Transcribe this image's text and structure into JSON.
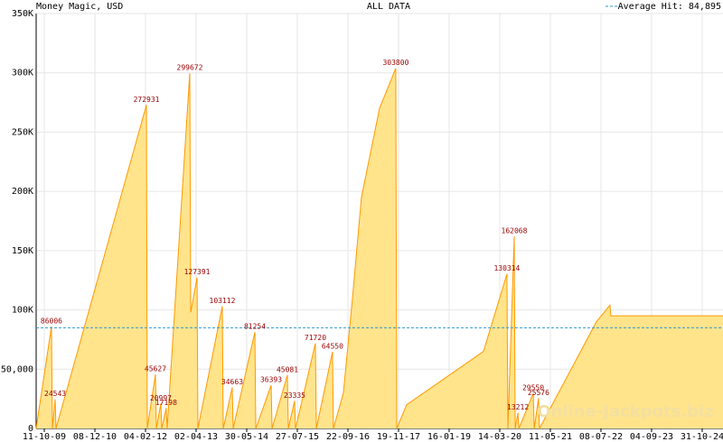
{
  "chart_data": {
    "type": "area",
    "title": "Money Magic, USD",
    "subtitle": "ALL DATA",
    "average": 84895,
    "average_label": "Average Hit: 84,895",
    "watermark": "Online-Jackpots.biz",
    "color": "#ff9900",
    "fill": "#ffe48c",
    "average_color": "#3399cc",
    "label_color": "#990000",
    "grid": true,
    "x": [
      "04-08-09",
      "10-12-09",
      "18-12-09",
      "10-01-10",
      "17-01-10",
      "12-02-12",
      "19-02-12",
      "27-04-12",
      "05-05-12",
      "11-06-12",
      "19-06-12",
      "26-07-12",
      "03-08-12",
      "08-02-13",
      "16-02-13",
      "10-04-13",
      "17-04-13",
      "07-11-13",
      "15-11-13",
      "29-01-14",
      "06-02-14",
      "06-08-14",
      "14-08-14",
      "20-12-14",
      "28-12-14",
      "05-05-15",
      "13-05-15",
      "04-07-15",
      "12-07-15",
      "25-12-15",
      "02-01-16",
      "16-05-16",
      "24-05-16",
      "15-08-16",
      "30-10-16",
      "13-01-17",
      "13-06-17",
      "27-10-17",
      "04-11-17",
      "26-01-18",
      "30-10-19",
      "13-05-20",
      "21-05-20",
      "13-07-20",
      "21-07-20",
      "13-08-20",
      "21-08-20",
      "19-12-20",
      "27-12-20",
      "01-02-21",
      "09-02-21",
      "31-05-22",
      "21-09-22",
      "29-09-22",
      "23-04-25"
    ],
    "values": [
      0,
      86006,
      0,
      24543,
      0,
      272931,
      0,
      45627,
      0,
      20997,
      0,
      17198,
      0,
      299672,
      98000,
      127391,
      0,
      103112,
      0,
      34663,
      0,
      81254,
      0,
      36393,
      0,
      45081,
      0,
      23335,
      0,
      71720,
      0,
      64550,
      0,
      30000,
      110000,
      195000,
      270000,
      303800,
      0,
      20000,
      65000,
      130314,
      0,
      162068,
      0,
      13212,
      0,
      29550,
      0,
      25576,
      0,
      90000,
      104000,
      95000,
      95000
    ],
    "value_labels": [
      null,
      "86006",
      null,
      "24543",
      null,
      "272931",
      null,
      "45627",
      null,
      "20997",
      null,
      "17198",
      null,
      "299672",
      null,
      "127391",
      null,
      "103112",
      null,
      "34663",
      null,
      "81254",
      null,
      "36393",
      null,
      "45081",
      null,
      "23335",
      null,
      "71720",
      null,
      "64550",
      null,
      null,
      null,
      null,
      null,
      "303800",
      null,
      null,
      null,
      "130314",
      null,
      "162068",
      null,
      "13212",
      null,
      "29550",
      null,
      "25576",
      null,
      null,
      null,
      null,
      null
    ],
    "xlim": [
      "04-08-09",
      "23-04-25"
    ],
    "xticks": [
      "11-10-09",
      "08-12-10",
      "04-02-12",
      "02-04-13",
      "30-05-14",
      "27-07-15",
      "22-09-16",
      "19-11-17",
      "16-01-19",
      "14-03-20",
      "11-05-21",
      "08-07-22",
      "04-09-23",
      "31-10-24"
    ],
    "ylim": [
      0,
      350000
    ],
    "yticks": [
      {
        "value": 0,
        "label": "0"
      },
      {
        "value": 50000,
        "label": "50,000"
      },
      {
        "value": 100000,
        "label": "100K"
      },
      {
        "value": 150000,
        "label": "150K"
      },
      {
        "value": 200000,
        "label": "200K"
      },
      {
        "value": 250000,
        "label": "250K"
      },
      {
        "value": 300000,
        "label": "300K"
      },
      {
        "value": 350000,
        "label": "350K"
      }
    ]
  }
}
